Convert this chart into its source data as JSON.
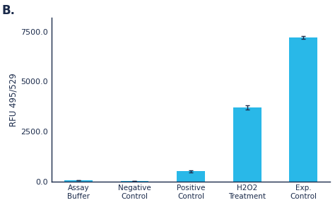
{
  "categories": [
    "Assay\nBuffer",
    "Negative\nControl",
    "Positive\nControl",
    "H2O2\nTreatment",
    "Exp.\nControl"
  ],
  "values": [
    50,
    8,
    500,
    3700,
    7200
  ],
  "errors": [
    8,
    3,
    45,
    120,
    75
  ],
  "bar_color": "#29B8E8",
  "error_color": "#1A2A4A",
  "ylabel": "RFU 495/529",
  "panel_label": "B.",
  "ylim": [
    0,
    8200
  ],
  "yticks": [
    0.0,
    2500.0,
    5000.0,
    7500.0
  ],
  "ytick_labels": [
    "0.0",
    "2500.0",
    "5000.0",
    "7500.0"
  ],
  "background_color": "#ffffff",
  "bar_width": 0.5,
  "label_fontsize": 7.5,
  "tick_fontsize": 8,
  "ylabel_fontsize": 8.5,
  "panel_label_fontsize": 12,
  "spine_color": "#1A2A4A",
  "text_color": "#1A2A4A"
}
